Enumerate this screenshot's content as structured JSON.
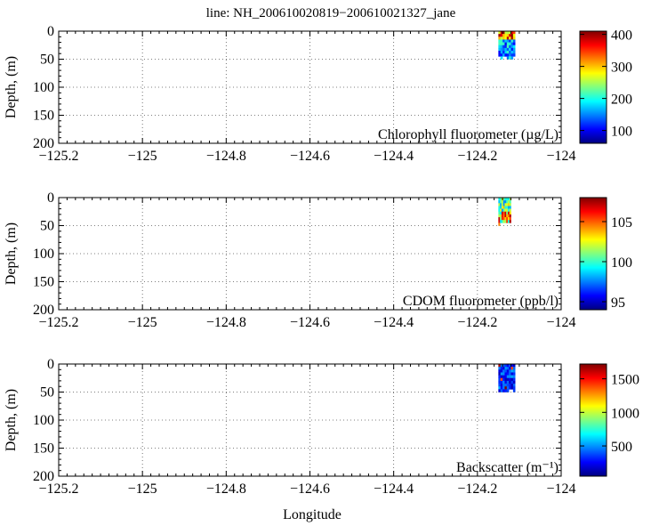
{
  "title": "line: NH_200610020819−200610021327_jane",
  "xlabel": "Longitude",
  "chart_data": [
    {
      "type": "heatmap",
      "label": "Chlorophyll fluorometer (µg/L)",
      "ylabel": "Depth, (m)",
      "xlim": [
        -125.2,
        -124.0
      ],
      "ylim": [
        200,
        0
      ],
      "x_ticks": [
        "−125.2",
        "−125",
        "−124.8",
        "−124.6",
        "−124.4",
        "−124.2",
        "−124"
      ],
      "y_ticks": [
        "0",
        "50",
        "100",
        "150",
        "200"
      ],
      "grid": true,
      "colorbar": {
        "min": 60,
        "max": 410,
        "ticks": [
          "400",
          "300",
          "200",
          "100"
        ],
        "tick_values": [
          400,
          300,
          200,
          100
        ]
      },
      "data_extent": {
        "lon": [
          -124.15,
          -124.11
        ],
        "depth": [
          0,
          50
        ]
      }
    },
    {
      "type": "heatmap",
      "label": "CDOM fluorometer (ppb/l)",
      "ylabel": "Depth, (m)",
      "xlim": [
        -125.2,
        -124.0
      ],
      "ylim": [
        200,
        0
      ],
      "x_ticks": [
        "−125.2",
        "−125",
        "−124.8",
        "−124.6",
        "−124.4",
        "−124.2",
        "−124"
      ],
      "y_ticks": [
        "0",
        "50",
        "100",
        "150",
        "200"
      ],
      "grid": true,
      "colorbar": {
        "min": 94,
        "max": 108,
        "ticks": [
          "105",
          "100",
          "95"
        ],
        "tick_values": [
          105,
          100,
          95
        ]
      },
      "data_extent": {
        "lon": [
          -124.15,
          -124.12
        ],
        "depth": [
          0,
          50
        ]
      }
    },
    {
      "type": "heatmap",
      "label": "Backscatter (m⁻¹)",
      "ylabel": "Depth, (m)",
      "xlim": [
        -125.2,
        -124.0
      ],
      "ylim": [
        200,
        0
      ],
      "x_ticks": [
        "−125.2",
        "−125",
        "−124.8",
        "−124.6",
        "−124.4",
        "−124.2",
        "−124"
      ],
      "y_ticks": [
        "0",
        "50",
        "100",
        "150",
        "200"
      ],
      "grid": true,
      "colorbar": {
        "min": 50,
        "max": 1720,
        "ticks": [
          "1500",
          "1000",
          "500"
        ],
        "tick_values": [
          1500,
          1000,
          500
        ]
      },
      "data_extent": {
        "lon": [
          -124.15,
          -124.11
        ],
        "depth": [
          0,
          50
        ]
      }
    }
  ]
}
